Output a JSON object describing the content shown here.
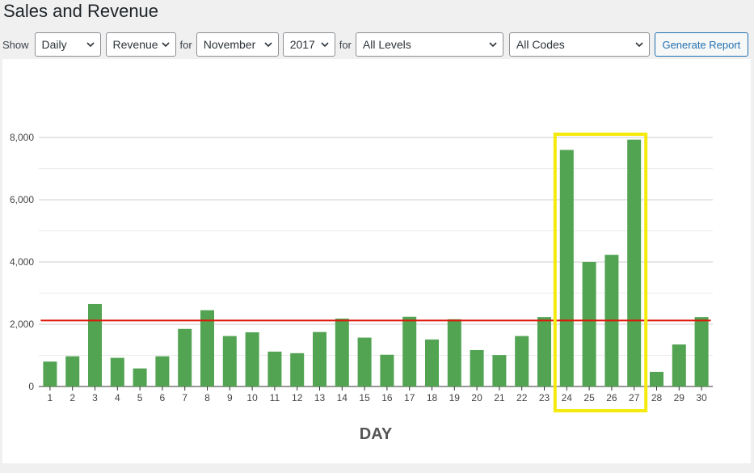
{
  "page": {
    "title": "Sales and Revenue"
  },
  "filters": {
    "show_label": "Show",
    "for_label_1": "for",
    "for_label_2": "for",
    "period": "Daily",
    "metric": "Revenue",
    "month": "November",
    "year": "2017",
    "level": "All Levels",
    "code": "All Codes",
    "generate_label": "Generate Report"
  },
  "colors": {
    "bar": "#52a352",
    "average_line": "#e0160a",
    "highlight_box": "#f5ea0d",
    "button_accent": "#2271b1"
  },
  "chart_data": {
    "type": "bar",
    "title": "",
    "xlabel": "DAY",
    "ylabel": "",
    "ylim": [
      0,
      8000
    ],
    "yticks": [
      0,
      2000,
      4000,
      6000,
      8000
    ],
    "ytick_labels": [
      "0",
      "2,000",
      "4,000",
      "6,000",
      "8,000"
    ],
    "grid": true,
    "categories": [
      "1",
      "2",
      "3",
      "4",
      "5",
      "6",
      "7",
      "8",
      "9",
      "10",
      "11",
      "12",
      "13",
      "14",
      "15",
      "16",
      "17",
      "18",
      "19",
      "20",
      "21",
      "22",
      "23",
      "24",
      "25",
      "26",
      "27",
      "28",
      "29",
      "30"
    ],
    "values": [
      800,
      970,
      2650,
      920,
      580,
      970,
      1850,
      2450,
      1620,
      1740,
      1120,
      1070,
      1750,
      2180,
      1570,
      1020,
      2240,
      1510,
      2160,
      1170,
      1010,
      1620,
      2230,
      7600,
      4000,
      4230,
      7930,
      470,
      1350,
      2230
    ],
    "average_line": 2120,
    "highlight_categories": [
      "24",
      "25",
      "26",
      "27"
    ]
  }
}
